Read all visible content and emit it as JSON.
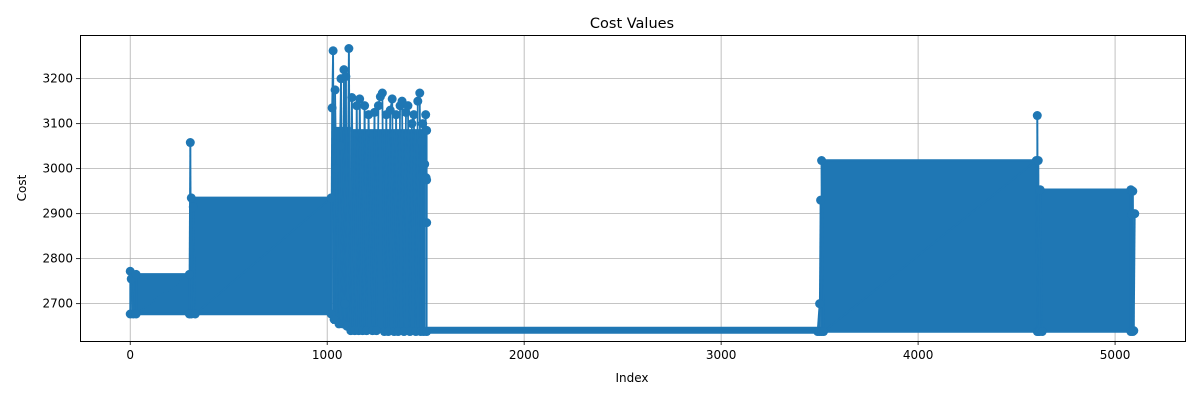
{
  "chart_data": {
    "type": "line",
    "title": "Cost Values",
    "xlabel": "Index",
    "ylabel": "Cost",
    "xlim": [
      -255,
      5355
    ],
    "ylim": [
      2617,
      3297
    ],
    "x_ticks": [
      0,
      1000,
      2000,
      3000,
      4000,
      5000
    ],
    "y_ticks": [
      2700,
      2800,
      2900,
      3000,
      3100,
      3200
    ],
    "grid": true,
    "legend": "none",
    "color": "#1f77b4",
    "marker": "circle",
    "series": [
      {
        "points": [
          [
            0,
            2772
          ],
          [
            0,
            2677
          ],
          [
            5,
            2755
          ],
          [
            15,
            2677
          ],
          [
            30,
            2765
          ],
          [
            30,
            2677
          ],
          [
            300,
            2765
          ],
          [
            300,
            2677
          ],
          [
            305,
            3058
          ],
          [
            310,
            2677
          ],
          [
            310,
            2935
          ],
          [
            320,
            2915
          ],
          [
            330,
            2677
          ],
          [
            1020,
            2935
          ],
          [
            1020,
            2677
          ],
          [
            1025,
            3135
          ],
          [
            1030,
            3262
          ],
          [
            1035,
            2665
          ],
          [
            1040,
            3175
          ],
          [
            1045,
            3000
          ],
          [
            1060,
            2655
          ],
          [
            1065,
            3050
          ],
          [
            1070,
            3200
          ],
          [
            1080,
            2655
          ],
          [
            1085,
            3220
          ],
          [
            1090,
            2700
          ],
          [
            1095,
            3205
          ],
          [
            1100,
            2650
          ],
          [
            1110,
            3267
          ],
          [
            1120,
            2640
          ],
          [
            1125,
            3158
          ],
          [
            1140,
            2640
          ],
          [
            1150,
            3140
          ],
          [
            1160,
            2640
          ],
          [
            1165,
            3155
          ],
          [
            1180,
            2640
          ],
          [
            1190,
            3140
          ],
          [
            1200,
            2640
          ],
          [
            1210,
            3120
          ],
          [
            1230,
            2640
          ],
          [
            1240,
            3125
          ],
          [
            1250,
            2640
          ],
          [
            1260,
            3140
          ],
          [
            1270,
            3160
          ],
          [
            1280,
            3168
          ],
          [
            1290,
            2638
          ],
          [
            1300,
            3120
          ],
          [
            1310,
            2638
          ],
          [
            1320,
            3130
          ],
          [
            1330,
            3155
          ],
          [
            1340,
            2638
          ],
          [
            1350,
            3120
          ],
          [
            1360,
            2638
          ],
          [
            1370,
            3140
          ],
          [
            1380,
            3150
          ],
          [
            1390,
            2638
          ],
          [
            1400,
            3125
          ],
          [
            1410,
            3140
          ],
          [
            1420,
            2638
          ],
          [
            1430,
            3100
          ],
          [
            1440,
            3120
          ],
          [
            1450,
            2638
          ],
          [
            1460,
            3150
          ],
          [
            1470,
            3168
          ],
          [
            1475,
            2638
          ],
          [
            1480,
            3060
          ],
          [
            1485,
            3100
          ],
          [
            1490,
            2638
          ],
          [
            1495,
            3010
          ],
          [
            1500,
            3120
          ],
          [
            1502,
            2980
          ],
          [
            1505,
            3085
          ],
          [
            1505,
            2880
          ],
          [
            1505,
            2975
          ],
          [
            1505,
            2638
          ],
          [
            3490,
            2638
          ],
          [
            3500,
            2700
          ],
          [
            3500,
            2638
          ],
          [
            3505,
            2930
          ],
          [
            3510,
            2638
          ],
          [
            3510,
            3018
          ],
          [
            3520,
            2638
          ],
          [
            4600,
            3018
          ],
          [
            4605,
            2638
          ],
          [
            4605,
            3118
          ],
          [
            4610,
            2638
          ],
          [
            4610,
            3018
          ],
          [
            4615,
            2638
          ],
          [
            4620,
            2953
          ],
          [
            4630,
            2638
          ],
          [
            5080,
            2953
          ],
          [
            5080,
            2638
          ],
          [
            5085,
            2898
          ],
          [
            5090,
            2638
          ],
          [
            5090,
            2950
          ],
          [
            5095,
            2640
          ],
          [
            5100,
            2900
          ]
        ]
      }
    ],
    "dense_bands": [
      {
        "x0": 5,
        "x1": 300,
        "y0": 2677,
        "y1": 2765,
        "top_edge": true
      },
      {
        "x0": 300,
        "x1": 1025,
        "y0": 2677,
        "y1": 2935,
        "top_edge": true
      },
      {
        "x0": 1025,
        "x1": 1120,
        "y0": 2655,
        "y1": 3090,
        "top_edge": false
      },
      {
        "x0": 1120,
        "x1": 1500,
        "y0": 2640,
        "y1": 3085,
        "top_edge": false
      },
      {
        "x0": 1500,
        "x1": 3510,
        "y0": 2636,
        "y1": 2646,
        "top_edge": true
      },
      {
        "x0": 3510,
        "x1": 4605,
        "y0": 2638,
        "y1": 3018,
        "top_edge": true
      },
      {
        "x0": 4605,
        "x1": 5090,
        "y0": 2638,
        "y1": 2953,
        "top_edge": true
      }
    ]
  }
}
